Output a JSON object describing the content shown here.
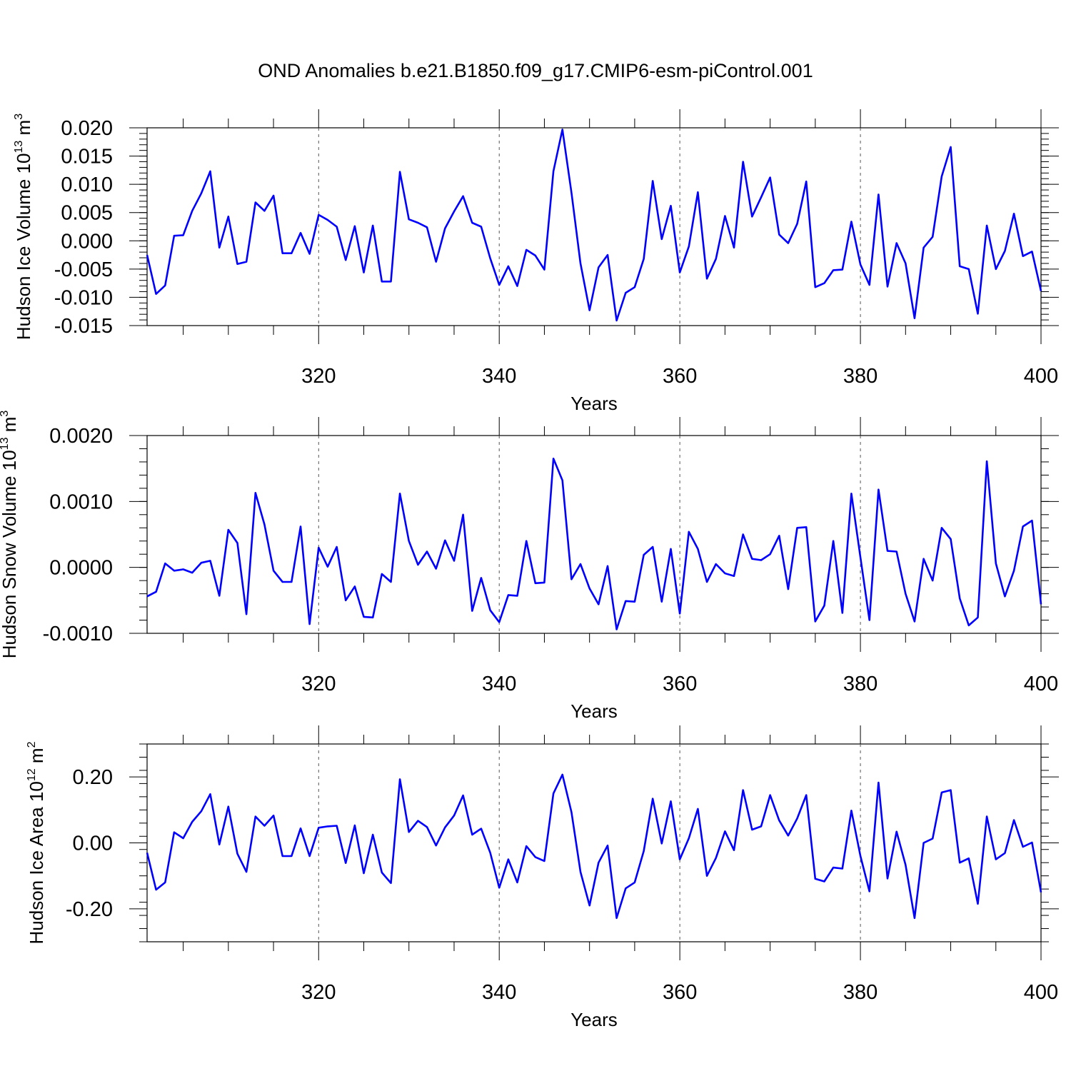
{
  "title": "OND Anomalies b.e21.B1850.f09_g17.CMIP6-esm-piControl.001",
  "colors": {
    "series": "#0000ff",
    "axes": "#000000"
  },
  "chart_data": [
    {
      "type": "line",
      "ylabel": "Hudson Ice Volume 10",
      "ylabel_exp": "13",
      "ylabel_unit": " m",
      "ylabel_unit_exp": "3",
      "xlabel": "Years",
      "xlim": [
        301,
        400
      ],
      "ylim": [
        -0.015,
        0.02
      ],
      "xticks": [
        320,
        340,
        360,
        380,
        400
      ],
      "xtick_labels": [
        "320",
        "340",
        "360",
        "380",
        "400"
      ],
      "yticks": [
        -0.015,
        -0.01,
        -0.005,
        0.0,
        0.005,
        0.01,
        0.015,
        0.02
      ],
      "ytick_labels": [
        "-0.015",
        "-0.010",
        "-0.005",
        "0.000",
        "0.005",
        "0.010",
        "0.015",
        "0.020"
      ],
      "grid_x": [
        320,
        340,
        360,
        380
      ],
      "x_start": 301,
      "values": [
        -0.0025,
        -0.0094,
        -0.0079,
        0.0009,
        0.001,
        0.0053,
        0.0084,
        0.0123,
        -0.0012,
        0.0043,
        -0.0041,
        -0.0037,
        0.0068,
        0.0053,
        0.008,
        -0.0022,
        -0.0022,
        0.0014,
        -0.0023,
        0.0046,
        0.0037,
        0.0025,
        -0.0034,
        0.0026,
        -0.0056,
        0.0027,
        -0.0072,
        -0.0072,
        0.0122,
        0.0038,
        0.0032,
        0.0024,
        -0.0037,
        0.0022,
        0.0052,
        0.0079,
        0.0032,
        0.0025,
        -0.0031,
        -0.0078,
        -0.0045,
        -0.008,
        -0.0016,
        -0.0026,
        -0.0051,
        0.0123,
        0.0197,
        0.0085,
        -0.004,
        -0.0123,
        -0.0047,
        -0.0025,
        -0.0141,
        -0.0092,
        -0.0082,
        -0.0032,
        0.0106,
        0.0003,
        0.0062,
        -0.0056,
        -0.001,
        0.0086,
        -0.0067,
        -0.0032,
        0.0044,
        -0.0012,
        0.014,
        0.0043,
        0.0077,
        0.0112,
        0.0011,
        -0.0004,
        0.003,
        0.0105,
        -0.0082,
        -0.0075,
        -0.0052,
        -0.0051,
        0.0034,
        -0.0042,
        -0.0078,
        0.0082,
        -0.0081,
        -0.0004,
        -0.004,
        -0.0137,
        -0.0012,
        0.0007,
        0.0114,
        0.0166,
        -0.0045,
        -0.005,
        -0.0129,
        0.0027,
        -0.005,
        -0.0018,
        0.0048,
        -0.0027,
        -0.0019,
        -0.0089
      ]
    },
    {
      "type": "line",
      "ylabel": "Hudson Snow Volume 10",
      "ylabel_exp": "13",
      "ylabel_unit": " m",
      "ylabel_unit_exp": "3",
      "xlabel": "Years",
      "xlim": [
        301,
        400
      ],
      "ylim": [
        -0.001,
        0.002
      ],
      "xticks": [
        320,
        340,
        360,
        380,
        400
      ],
      "xtick_labels": [
        "320",
        "340",
        "360",
        "380",
        "400"
      ],
      "yticks": [
        -0.001,
        0.0,
        0.001,
        0.002
      ],
      "ytick_labels": [
        "-0.0010",
        "0.0000",
        "0.0010",
        "0.0020"
      ],
      "grid_x": [
        320,
        340,
        360,
        380
      ],
      "x_start": 301,
      "values": [
        -0.00044,
        -0.00037,
        6e-05,
        -5e-05,
        -3e-05,
        -8e-05,
        7e-05,
        0.0001,
        -0.00043,
        0.00057,
        0.00037,
        -0.00071,
        0.00113,
        0.00065,
        -5e-05,
        -0.00022,
        -0.00022,
        0.00062,
        -0.00086,
        0.0003,
        1e-05,
        0.00031,
        -0.0005,
        -0.00029,
        -0.00075,
        -0.00076,
        -0.0001,
        -0.00022,
        0.00112,
        0.0004,
        4e-05,
        0.00024,
        -2e-05,
        0.00041,
        0.0001,
        0.0008,
        -0.00066,
        -0.00016,
        -0.00065,
        -0.00083,
        -0.00042,
        -0.00043,
        0.0004,
        -0.00024,
        -0.00023,
        0.00165,
        0.00132,
        -0.00018,
        5e-05,
        -0.00032,
        -0.00056,
        2e-05,
        -0.00094,
        -0.00051,
        -0.00052,
        0.00019,
        0.00031,
        -0.00052,
        0.00028,
        -0.0007,
        0.00054,
        0.00028,
        -0.00022,
        5e-05,
        -9e-05,
        -0.00013,
        0.0005,
        0.00013,
        0.00011,
        0.0002,
        0.00048,
        -0.00033,
        0.0006,
        0.00061,
        -0.00082,
        -0.00058,
        0.0004,
        -0.00069,
        0.00112,
        0.00015,
        -0.0008,
        0.00118,
        0.00025,
        0.00024,
        -0.0004,
        -0.00082,
        0.00013,
        -0.0002,
        0.0006,
        0.00043,
        -0.00047,
        -0.00088,
        -0.00076,
        0.00161,
        6e-05,
        -0.00044,
        -5e-05,
        0.00062,
        0.00071,
        -0.00056
      ]
    },
    {
      "type": "line",
      "ylabel": "Hudson Ice Area 10",
      "ylabel_exp": "12",
      "ylabel_unit": " m",
      "ylabel_unit_exp": "2",
      "xlabel": "Years",
      "xlim": [
        301,
        400
      ],
      "ylim": [
        -0.3,
        0.3
      ],
      "xticks": [
        320,
        340,
        360,
        380,
        400
      ],
      "xtick_labels": [
        "320",
        "340",
        "360",
        "380",
        "400"
      ],
      "yticks": [
        -0.2,
        0.0,
        0.2
      ],
      "ytick_labels": [
        "-0.20",
        "0.00",
        "0.20"
      ],
      "grid_x": [
        320,
        340,
        360,
        380
      ],
      "x_start": 301,
      "values": [
        -0.03,
        -0.142,
        -0.12,
        0.032,
        0.014,
        0.064,
        0.096,
        0.148,
        -0.005,
        0.11,
        -0.033,
        -0.088,
        0.08,
        0.052,
        0.083,
        -0.04,
        -0.04,
        0.044,
        -0.04,
        0.046,
        0.05,
        0.052,
        -0.061,
        0.053,
        -0.092,
        0.025,
        -0.09,
        -0.122,
        0.193,
        0.033,
        0.067,
        0.048,
        -0.008,
        0.047,
        0.083,
        0.144,
        0.025,
        0.043,
        -0.03,
        -0.136,
        -0.05,
        -0.12,
        -0.01,
        -0.043,
        -0.055,
        0.15,
        0.207,
        0.093,
        -0.088,
        -0.19,
        -0.06,
        -0.008,
        -0.228,
        -0.138,
        -0.12,
        -0.025,
        0.134,
        -0.002,
        0.126,
        -0.05,
        0.014,
        0.103,
        -0.1,
        -0.046,
        0.035,
        -0.022,
        0.16,
        0.04,
        0.05,
        0.145,
        0.068,
        0.022,
        0.074,
        0.145,
        -0.109,
        -0.117,
        -0.075,
        -0.078,
        0.098,
        -0.04,
        -0.147,
        0.183,
        -0.108,
        0.034,
        -0.067,
        -0.228,
        0.0,
        0.013,
        0.153,
        0.16,
        -0.06,
        -0.047,
        -0.185,
        0.08,
        -0.05,
        -0.031,
        0.069,
        -0.012,
        0.001,
        -0.15
      ]
    }
  ]
}
